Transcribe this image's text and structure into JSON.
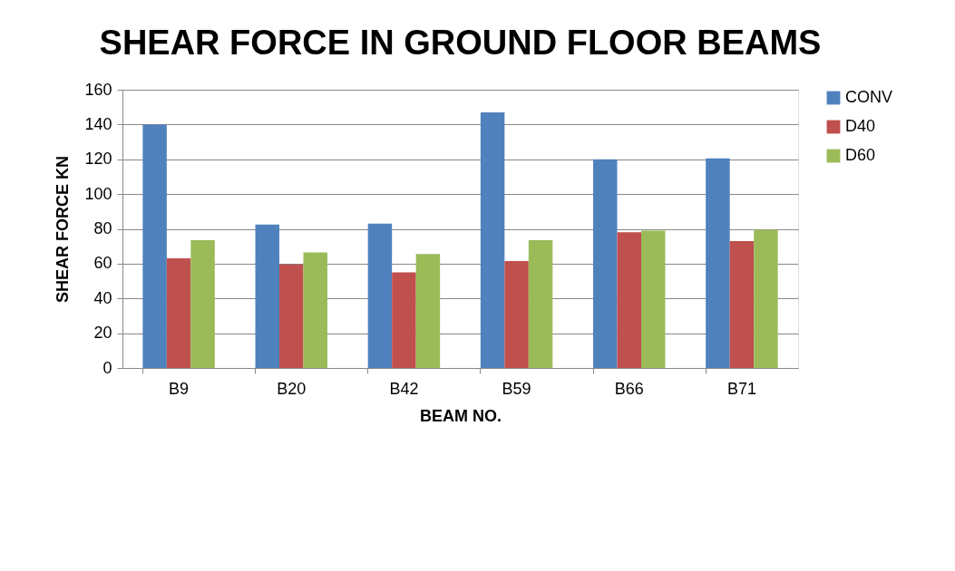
{
  "chart_data": {
    "type": "bar",
    "title": "SHEAR FORCE IN GROUND FLOOR BEAMS",
    "xlabel": "BEAM NO.",
    "ylabel": "SHEAR FORCE KN",
    "categories": [
      "B9",
      "B20",
      "B42",
      "B59",
      "B66",
      "B71"
    ],
    "series": [
      {
        "name": "CONV",
        "color": "#4f81bd",
        "values": [
          140,
          82.5,
          83,
          147,
          120,
          120.5
        ]
      },
      {
        "name": "D40",
        "color": "#c0504d",
        "values": [
          63,
          59.5,
          55,
          61.5,
          78,
          73
        ]
      },
      {
        "name": "D60",
        "color": "#9bbb59",
        "values": [
          73.5,
          66.5,
          65.5,
          73.5,
          79,
          79.5
        ]
      }
    ],
    "ylim": [
      0,
      160
    ],
    "yticks": [
      0,
      20,
      40,
      60,
      80,
      100,
      120,
      140,
      160
    ],
    "grid": "y",
    "legend": "right"
  }
}
